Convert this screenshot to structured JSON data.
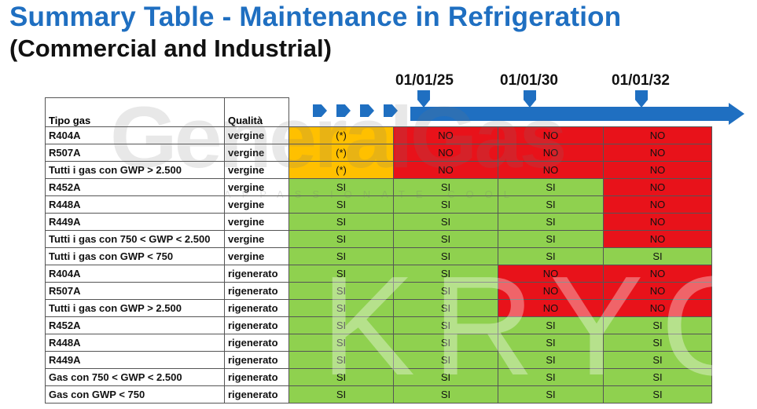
{
  "header": {
    "title": "Summary Table - Maintenance in Refrigeration",
    "subtitle": "(Commercial and Industrial)"
  },
  "watermarks": {
    "brand_top": "GeneralGas",
    "brand_tag": "APPASSIONATE COOL",
    "brand_bottom": "KRYON"
  },
  "timeline": {
    "dates": [
      "01/01/25",
      "01/01/30",
      "01/01/32"
    ]
  },
  "table": {
    "headers": {
      "gas": "Tipo gas",
      "quality": "Qualità"
    },
    "rows": [
      {
        "gas": "R404A",
        "quality": "vergine",
        "values": [
          "(*)",
          "NO",
          "NO",
          "NO"
        ],
        "colors": [
          "orange",
          "red",
          "red",
          "red"
        ]
      },
      {
        "gas": "R507A",
        "quality": "vergine",
        "values": [
          "(*)",
          "NO",
          "NO",
          "NO"
        ],
        "colors": [
          "orange",
          "red",
          "red",
          "red"
        ]
      },
      {
        "gas": "Tutti i gas con GWP > 2.500",
        "quality": "vergine",
        "values": [
          "(*)",
          "NO",
          "NO",
          "NO"
        ],
        "colors": [
          "orange",
          "red",
          "red",
          "red"
        ]
      },
      {
        "gas": "R452A",
        "quality": "vergine",
        "values": [
          "SI",
          "SI",
          "SI",
          "NO"
        ],
        "colors": [
          "green",
          "green",
          "green",
          "red"
        ]
      },
      {
        "gas": "R448A",
        "quality": "vergine",
        "values": [
          "SI",
          "SI",
          "SI",
          "NO"
        ],
        "colors": [
          "green",
          "green",
          "green",
          "red"
        ]
      },
      {
        "gas": "R449A",
        "quality": "vergine",
        "values": [
          "SI",
          "SI",
          "SI",
          "NO"
        ],
        "colors": [
          "green",
          "green",
          "green",
          "red"
        ]
      },
      {
        "gas": "Tutti i gas con 750 < GWP < 2.500",
        "quality": "vergine",
        "values": [
          "SI",
          "SI",
          "SI",
          "NO"
        ],
        "colors": [
          "green",
          "green",
          "green",
          "red"
        ]
      },
      {
        "gas": "Tutti i gas con GWP < 750",
        "quality": "vergine",
        "values": [
          "SI",
          "SI",
          "SI",
          "SI"
        ],
        "colors": [
          "green",
          "green",
          "green",
          "green"
        ]
      },
      {
        "gas": "R404A",
        "quality": "rigenerato",
        "values": [
          "SI",
          "SI",
          "NO",
          "NO"
        ],
        "colors": [
          "green",
          "green",
          "red",
          "red"
        ]
      },
      {
        "gas": "R507A",
        "quality": "rigenerato",
        "values": [
          "SI",
          "SI",
          "NO",
          "NO"
        ],
        "colors": [
          "green",
          "green",
          "red",
          "red"
        ]
      },
      {
        "gas": "Tutti i gas con GWP > 2.500",
        "quality": "rigenerato",
        "values": [
          "SI",
          "SI",
          "NO",
          "NO"
        ],
        "colors": [
          "green",
          "green",
          "red",
          "red"
        ]
      },
      {
        "gas": "R452A",
        "quality": "rigenerato",
        "values": [
          "SI",
          "SI",
          "SI",
          "SI"
        ],
        "colors": [
          "green",
          "green",
          "green",
          "green"
        ]
      },
      {
        "gas": "R448A",
        "quality": "rigenerato",
        "values": [
          "SI",
          "SI",
          "SI",
          "SI"
        ],
        "colors": [
          "green",
          "green",
          "green",
          "green"
        ]
      },
      {
        "gas": "R449A",
        "quality": "rigenerato",
        "values": [
          "SI",
          "SI",
          "SI",
          "SI"
        ],
        "colors": [
          "green",
          "green",
          "green",
          "green"
        ]
      },
      {
        "gas": "Gas con 750 < GWP < 2.500",
        "quality": "rigenerato",
        "values": [
          "SI",
          "SI",
          "SI",
          "SI"
        ],
        "colors": [
          "green",
          "green",
          "green",
          "green"
        ]
      },
      {
        "gas": "Gas con GWP < 750",
        "quality": "rigenerato",
        "values": [
          "SI",
          "SI",
          "SI",
          "SI"
        ],
        "colors": [
          "green",
          "green",
          "green",
          "green"
        ]
      }
    ]
  },
  "colors": {
    "title": "#1f6fc1",
    "arrow": "#1f6fc1",
    "green": "#8fd14f",
    "red": "#e8121a",
    "orange": "#ffc000"
  }
}
